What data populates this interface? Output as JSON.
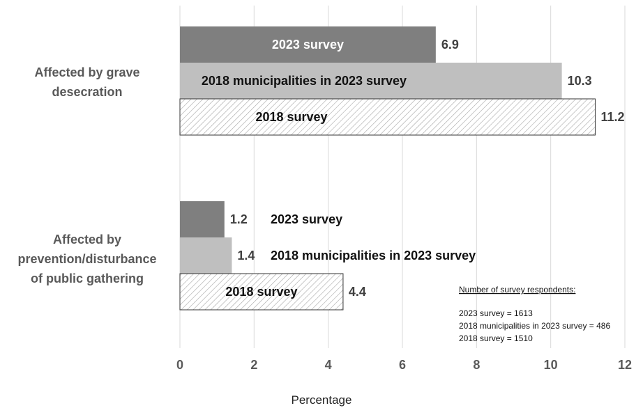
{
  "chart_data": {
    "type": "bar",
    "orientation": "horizontal",
    "categories": [
      "Affected by grave desecration",
      "Affected by prevention/disturbance of public gathering"
    ],
    "series": [
      {
        "name": "2023 survey",
        "values": [
          6.9,
          1.2
        ],
        "color": "#7f7f7f",
        "pattern": "solid"
      },
      {
        "name": "2018 municipalities in 2023 survey",
        "values": [
          10.3,
          1.4
        ],
        "color": "#bfbfbf",
        "pattern": "solid"
      },
      {
        "name": "2018 survey",
        "values": [
          11.2,
          4.4
        ],
        "color": "#ffffff",
        "pattern": "diagonal-hatch"
      }
    ],
    "xlabel": "Percentage",
    "ylabel": "",
    "xlim": [
      0,
      12
    ],
    "xticks": [
      0,
      2,
      4,
      6,
      8,
      10,
      12
    ],
    "grid": "vertical",
    "legend": "none",
    "annotation": {
      "title": "Number of survey respondents:",
      "lines": [
        "2023 survey = 1613",
        "2018 municipalities in 2023 survey = 486",
        "2018 survey = 1510"
      ]
    }
  }
}
